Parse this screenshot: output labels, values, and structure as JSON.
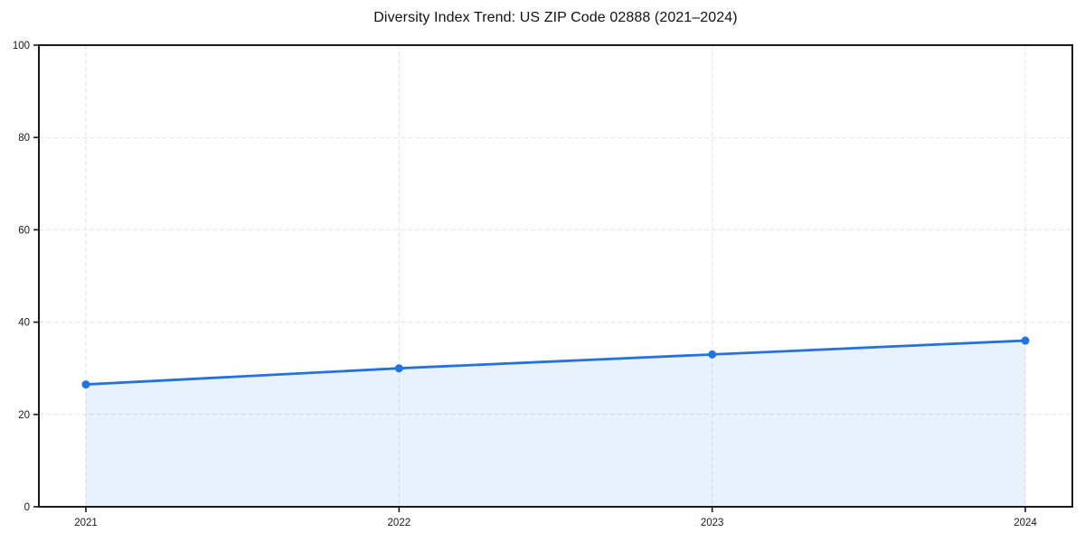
{
  "chart_data": {
    "type": "area",
    "title": "Diversity Index Trend: US ZIP Code 02888 (2021–2024)",
    "categories": [
      "2021",
      "2022",
      "2023",
      "2024"
    ],
    "series": [
      {
        "name": "Diversity Index",
        "values": [
          26.5,
          30,
          33,
          36
        ]
      }
    ],
    "xlabel": "",
    "ylabel": "",
    "ylim": [
      0,
      100
    ],
    "yticks": [
      0,
      20,
      40,
      60,
      80,
      100
    ],
    "grid": "dashed-both-axes",
    "legend": "none",
    "marker": "circle",
    "colors": {
      "line": "#2472e0",
      "marker": "#2472e0",
      "fill": "rgba(36,114,224,0.10)",
      "grid": "#e2e2e2",
      "spine": "#1a1a1a",
      "tick_text": "#1a1a1a",
      "background": "#ffffff"
    }
  }
}
